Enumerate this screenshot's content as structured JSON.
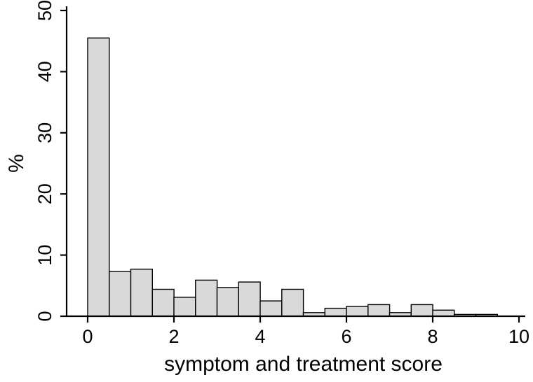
{
  "chart_data": {
    "type": "bar",
    "chart_kind": "histogram",
    "title": "",
    "xlabel": "symptom and treatment score",
    "ylabel": "%",
    "bin_width": 0.5,
    "bin_starts": [
      0,
      0.5,
      1,
      1.5,
      2,
      2.5,
      3,
      3.5,
      4,
      4.5,
      5,
      5.5,
      6,
      6.5,
      7,
      7.5,
      8,
      8.5,
      9,
      9.5
    ],
    "values": [
      45.5,
      7.3,
      7.7,
      4.4,
      3.1,
      5.9,
      4.7,
      5.6,
      2.5,
      4.4,
      0.6,
      1.3,
      1.6,
      1.9,
      0.6,
      1.9,
      1.0,
      0.3,
      0.3,
      0
    ],
    "xlim": [
      0,
      10
    ],
    "ylim": [
      0,
      50
    ],
    "x_ticks": [
      0,
      2,
      4,
      6,
      8,
      10
    ],
    "x_tick_labels": [
      "0",
      "2",
      "4",
      "6",
      "8",
      "10"
    ],
    "y_ticks": [
      0,
      10,
      20,
      30,
      40,
      50
    ],
    "y_tick_labels": [
      "0",
      "10",
      "20",
      "30",
      "40",
      "50"
    ],
    "grid": false,
    "legend": false,
    "colors": {
      "bar_fill": "#d9d9d9",
      "bar_stroke": "#000000",
      "axis": "#000000",
      "background": "#ffffff",
      "text": "#000000"
    }
  }
}
